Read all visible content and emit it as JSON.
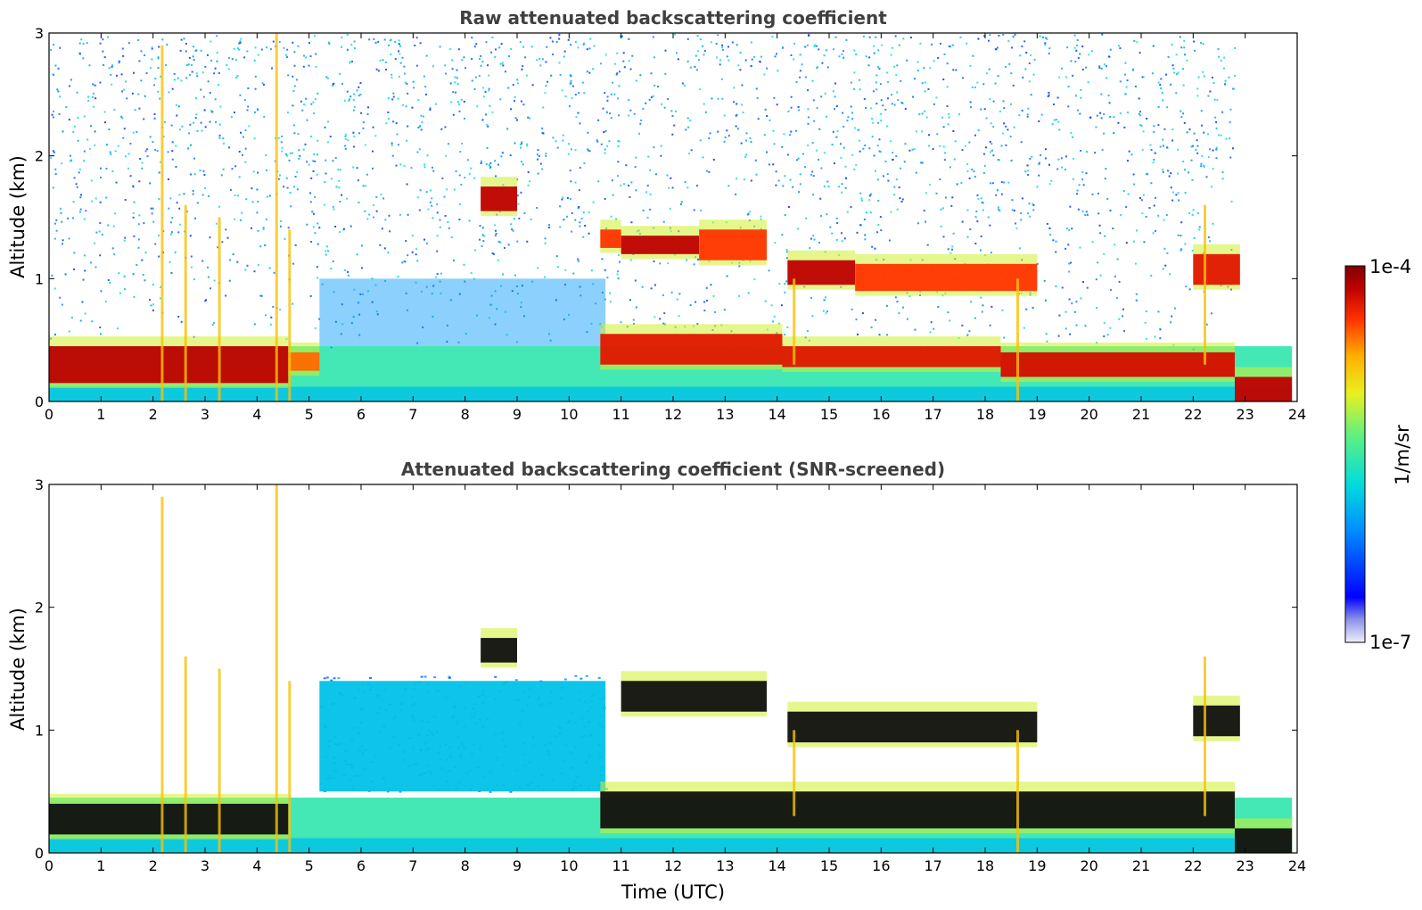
{
  "chart_data": [
    {
      "type": "heatmap",
      "title": "Raw attenuated backscattering coefficient",
      "xlabel": "",
      "ylabel": "Altitude (km)",
      "xlim": [
        0,
        24
      ],
      "ylim": [
        0,
        3
      ],
      "xticks": [
        "0",
        "1",
        "2",
        "3",
        "4",
        "5",
        "6",
        "7",
        "8",
        "9",
        "10",
        "11",
        "12",
        "13",
        "14",
        "15",
        "16",
        "17",
        "18",
        "19",
        "20",
        "21",
        "22",
        "23",
        "24"
      ],
      "yticks": [
        "0",
        "1",
        "2",
        "3"
      ],
      "colorscale": "log",
      "features": [
        {
          "t0": 0.0,
          "t1": 4.6,
          "z0": 0.15,
          "z1": 0.45,
          "level": 0.95
        },
        {
          "t0": 4.6,
          "t1": 5.2,
          "z0": 0.25,
          "z1": 0.4,
          "level": 0.8
        },
        {
          "t0": 8.3,
          "t1": 9.0,
          "z0": 1.55,
          "z1": 1.75,
          "level": 0.95
        },
        {
          "t0": 10.6,
          "t1": 14.1,
          "z0": 0.3,
          "z1": 0.55,
          "level": 0.9
        },
        {
          "t0": 10.6,
          "t1": 11.0,
          "z0": 1.25,
          "z1": 1.4,
          "level": 0.85
        },
        {
          "t0": 11.0,
          "t1": 12.5,
          "z0": 1.2,
          "z1": 1.35,
          "level": 0.95
        },
        {
          "t0": 12.5,
          "t1": 13.8,
          "z0": 1.15,
          "z1": 1.4,
          "level": 0.85
        },
        {
          "t0": 14.2,
          "t1": 15.5,
          "z0": 0.95,
          "z1": 1.15,
          "level": 0.95
        },
        {
          "t0": 15.5,
          "t1": 19.0,
          "z0": 0.9,
          "z1": 1.12,
          "level": 0.85
        },
        {
          "t0": 14.1,
          "t1": 18.3,
          "z0": 0.28,
          "z1": 0.45,
          "level": 0.9
        },
        {
          "t0": 18.3,
          "t1": 22.8,
          "z0": 0.2,
          "z1": 0.4,
          "level": 0.92
        },
        {
          "t0": 22.0,
          "t1": 22.9,
          "z0": 0.95,
          "z1": 1.2,
          "level": 0.9
        },
        {
          "t0": 22.8,
          "t1": 23.9,
          "z0": 0.0,
          "z1": 0.2,
          "level": 0.95
        }
      ]
    },
    {
      "type": "heatmap",
      "title": "Attenuated backscattering coefficient (SNR-screened)",
      "xlabel": "Time (UTC)",
      "ylabel": "Altitude (km)",
      "xlim": [
        0,
        24
      ],
      "ylim": [
        0,
        3
      ],
      "xticks": [
        "0",
        "1",
        "2",
        "3",
        "4",
        "5",
        "6",
        "7",
        "8",
        "9",
        "10",
        "11",
        "12",
        "13",
        "14",
        "15",
        "16",
        "17",
        "18",
        "19",
        "20",
        "21",
        "22",
        "23",
        "24"
      ],
      "yticks": [
        "0",
        "1",
        "2",
        "3"
      ],
      "colorscale": "log",
      "features": [
        {
          "t0": 0.0,
          "t1": 4.6,
          "z0": 0.15,
          "z1": 0.4,
          "level": 1.0
        },
        {
          "t0": 5.2,
          "t1": 10.7,
          "z0": 0.5,
          "z1": 1.4,
          "level": 0.3
        },
        {
          "t0": 8.3,
          "t1": 9.0,
          "z0": 1.55,
          "z1": 1.75,
          "level": 1.0
        },
        {
          "t0": 11.0,
          "t1": 13.8,
          "z0": 1.15,
          "z1": 1.4,
          "level": 1.0
        },
        {
          "t0": 14.2,
          "t1": 19.0,
          "z0": 0.9,
          "z1": 1.15,
          "level": 1.0
        },
        {
          "t0": 10.6,
          "t1": 22.8,
          "z0": 0.2,
          "z1": 0.5,
          "level": 1.0
        },
        {
          "t0": 22.0,
          "t1": 22.9,
          "z0": 0.95,
          "z1": 1.2,
          "level": 1.0
        },
        {
          "t0": 22.8,
          "t1": 23.9,
          "z0": 0.0,
          "z1": 0.2,
          "level": 1.0
        }
      ]
    }
  ],
  "colorbar": {
    "max_label": "1e-4",
    "min_label": "1e-7",
    "unit_label": "1/m/sr",
    "colors": [
      "#00007f",
      "#0000ff",
      "#007fff",
      "#00ffff",
      "#7fff7f",
      "#ffff00",
      "#ff7f00",
      "#ff0000",
      "#7f0000"
    ]
  }
}
